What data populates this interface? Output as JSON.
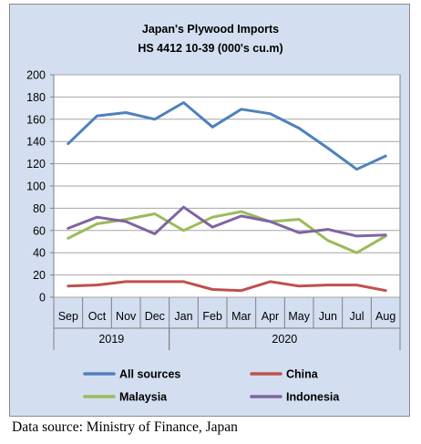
{
  "chart_data": {
    "type": "line",
    "title": "Japan's Plywood Imports",
    "subtitle": "HS 4412 10-39 (000's cu.m)",
    "categories": [
      "Sep",
      "Oct",
      "Nov",
      "Dec",
      "Jan",
      "Feb",
      "Mar",
      "Apr",
      "May",
      "Jun",
      "Jul",
      "Aug"
    ],
    "year_groups": [
      {
        "label": "2019",
        "from": 0,
        "to": 3
      },
      {
        "label": "2020",
        "from": 4,
        "to": 11
      }
    ],
    "ylim": [
      0,
      200
    ],
    "yticks": [
      0,
      20,
      40,
      60,
      80,
      100,
      120,
      140,
      160,
      180,
      200
    ],
    "grid": true,
    "legend_position": "bottom",
    "series": [
      {
        "name": "All sources",
        "color": "#4f81bd",
        "values": [
          138,
          163,
          166,
          160,
          175,
          153,
          169,
          165,
          152,
          134,
          115,
          127
        ]
      },
      {
        "name": "China",
        "color": "#c0504d",
        "values": [
          10,
          11,
          14,
          14,
          14,
          7,
          6,
          14,
          10,
          11,
          11,
          6
        ]
      },
      {
        "name": "Malaysia",
        "color": "#9bbb59",
        "values": [
          53,
          66,
          70,
          75,
          60,
          72,
          77,
          68,
          70,
          51,
          40,
          55
        ]
      },
      {
        "name": "Indonesia",
        "color": "#8064a2",
        "values": [
          62,
          72,
          68,
          57,
          81,
          63,
          73,
          68,
          58,
          61,
          55,
          56
        ]
      }
    ]
  },
  "source_note": "Data source: Ministry of Finance, Japan"
}
